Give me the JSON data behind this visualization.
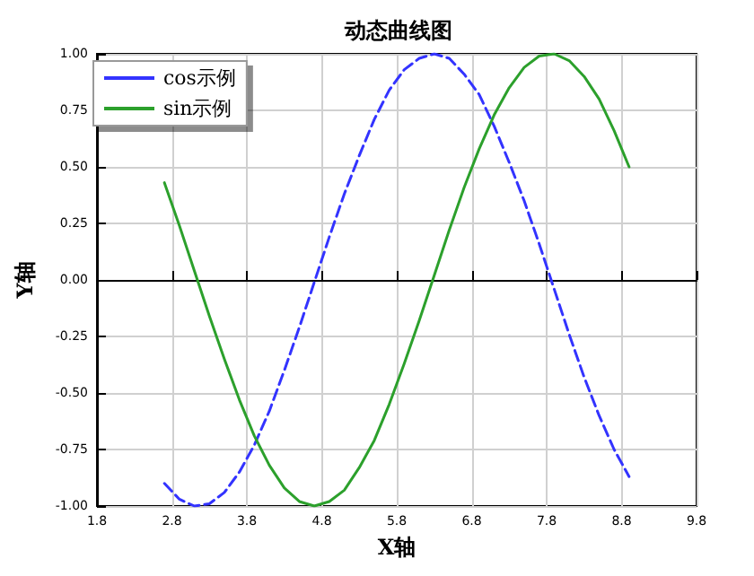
{
  "chart_data": {
    "type": "line",
    "title": "动态曲线图",
    "xlabel": "X轴",
    "ylabel": "Y轴",
    "x": [
      2.7,
      2.9,
      3.1,
      3.3,
      3.5,
      3.7,
      3.9,
      4.1,
      4.3,
      4.5,
      4.7,
      4.9,
      5.1,
      5.3,
      5.5,
      5.7,
      5.9,
      6.1,
      6.3,
      6.5,
      6.7,
      6.9,
      7.1,
      7.3,
      7.5,
      7.7,
      7.9,
      8.1,
      8.3,
      8.5,
      8.7,
      8.9
    ],
    "series": [
      {
        "name": "cos示例",
        "color": "#3333ff",
        "line_style": "dashed",
        "values": [
          -0.9,
          -0.97,
          -1,
          -0.99,
          -0.94,
          -0.85,
          -0.73,
          -0.58,
          -0.4,
          -0.21,
          -0.01,
          0.19,
          0.38,
          0.55,
          0.71,
          0.84,
          0.93,
          0.98,
          1,
          0.98,
          0.91,
          0.82,
          0.68,
          0.52,
          0.35,
          0.16,
          -0.04,
          -0.24,
          -0.43,
          -0.6,
          -0.75,
          -0.87
        ]
      },
      {
        "name": "sin示例",
        "color": "#2ca02c",
        "line_style": "solid",
        "values": [
          0.43,
          0.24,
          0.04,
          -0.16,
          -0.35,
          -0.53,
          -0.69,
          -0.82,
          -0.92,
          -0.98,
          -1,
          -0.98,
          -0.93,
          -0.83,
          -0.71,
          -0.55,
          -0.37,
          -0.18,
          0.02,
          0.22,
          0.41,
          0.58,
          0.73,
          0.85,
          0.94,
          0.99,
          1,
          0.97,
          0.9,
          0.8,
          0.66,
          0.5
        ]
      }
    ],
    "xlim": [
      1.8,
      9.8
    ],
    "xticks": [
      1.8,
      2.8,
      3.8,
      4.8,
      5.8,
      6.8,
      7.8,
      8.8,
      9.8
    ],
    "ylim": [
      -1,
      1
    ],
    "yticks": [
      {
        "value": -1,
        "label": "-1.00"
      },
      {
        "value": -0.75,
        "label": "-0.75"
      },
      {
        "value": -0.5,
        "label": "-0.50"
      },
      {
        "value": -0.25,
        "label": "-0.25"
      },
      {
        "value": 0,
        "label": "0.00"
      },
      {
        "value": 0.25,
        "label": "0.25"
      },
      {
        "value": 0.5,
        "label": "0.50"
      },
      {
        "value": 0.75,
        "label": "0.75"
      },
      {
        "value": 1,
        "label": "1.00"
      }
    ],
    "grid": true,
    "legend": "top left",
    "marker": "none"
  }
}
